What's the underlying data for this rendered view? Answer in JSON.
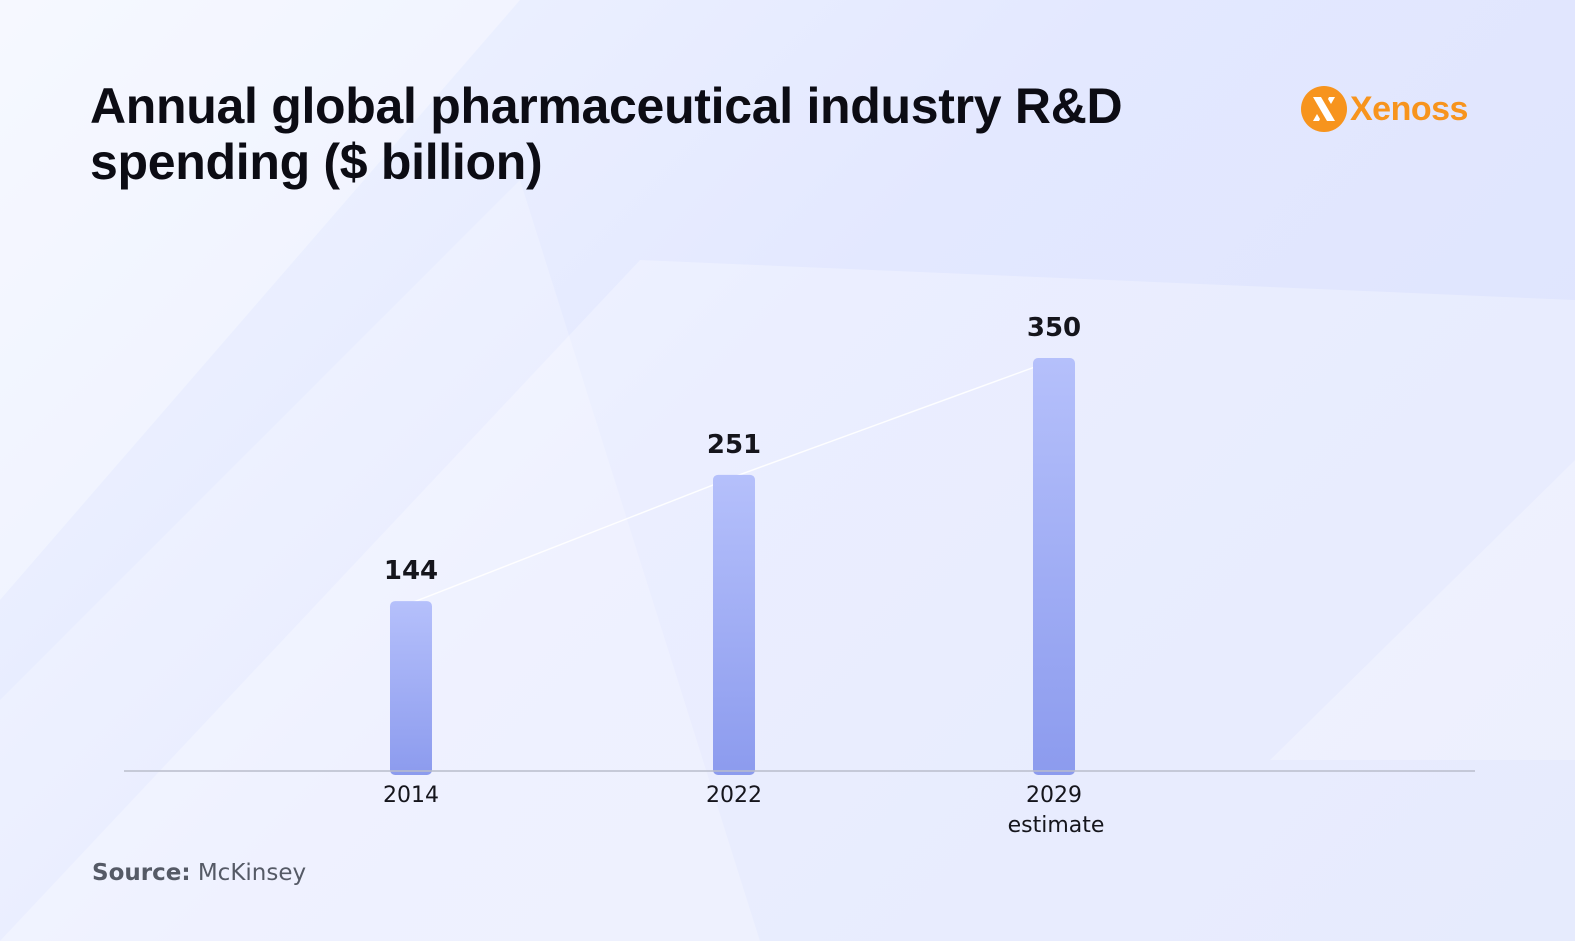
{
  "header": {
    "title": "Annual global pharmaceutical industry R&D spending ($ billion)"
  },
  "logo": {
    "text": "Xenoss",
    "icon": "xenoss-logo-icon",
    "color": "#f7941d"
  },
  "source": {
    "label": "Source:",
    "value": "McKinsey"
  },
  "colors": {
    "bar_top": "#b5c0fb",
    "bar_bottom": "#8c9bee",
    "axis": "#b9bdcc"
  },
  "chart_data": {
    "type": "bar",
    "title": "Annual global pharmaceutical industry R&D spending ($ billion)",
    "categories": [
      "2014",
      "2022",
      "2029"
    ],
    "category_sublabels": [
      "",
      "",
      "estimate"
    ],
    "values": [
      144,
      251,
      350
    ],
    "data_labels": [
      "144",
      "251",
      "350"
    ],
    "xlabel": "",
    "ylabel": "",
    "ylim": [
      0,
      350
    ],
    "grid": false,
    "legend": "none",
    "connector_line": true
  }
}
